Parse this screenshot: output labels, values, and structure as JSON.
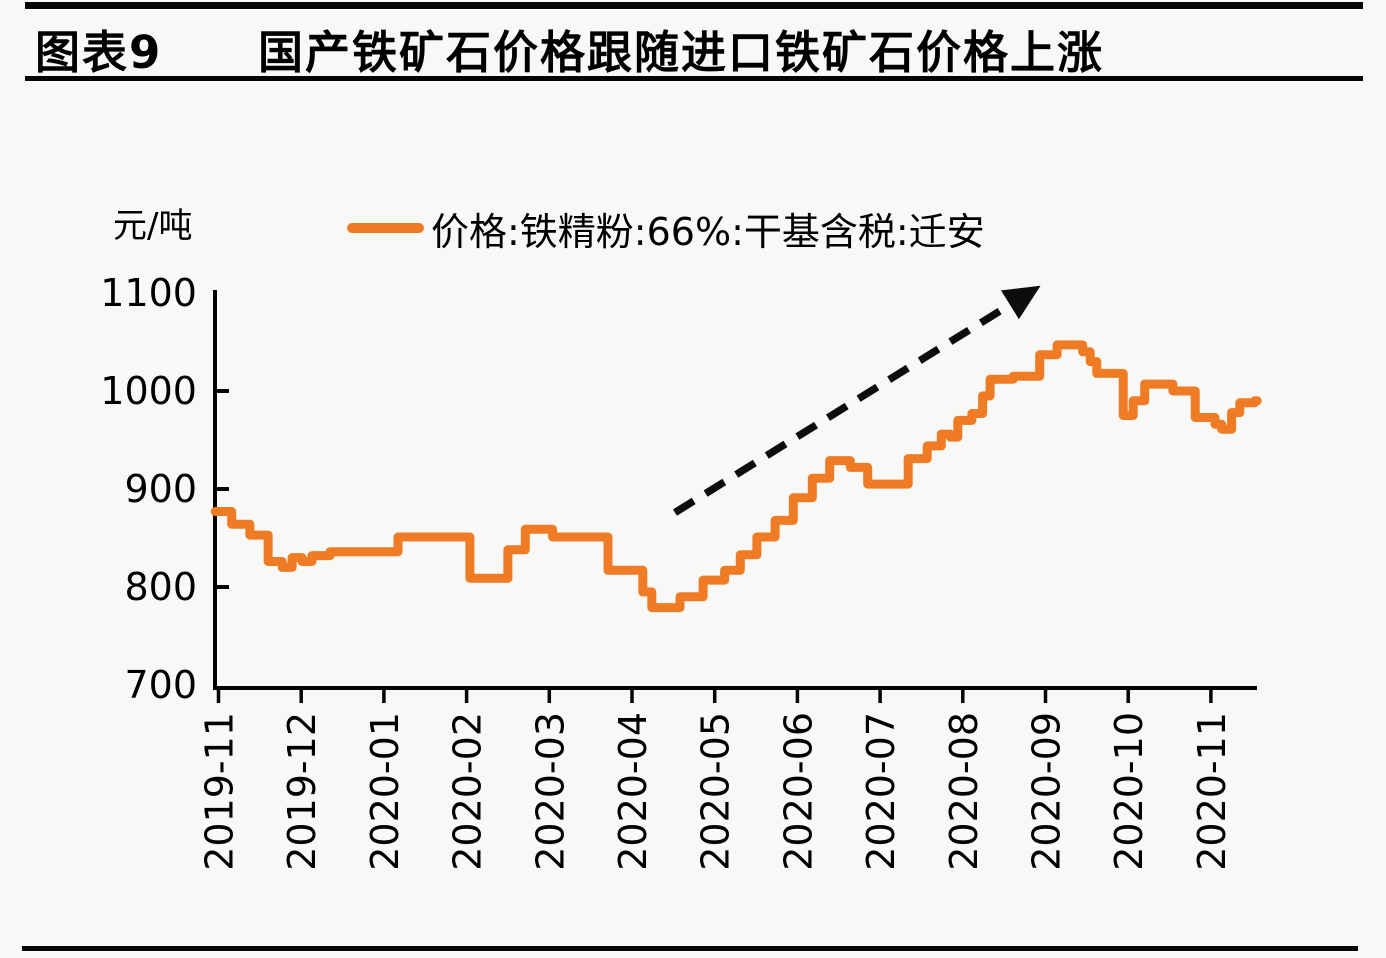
{
  "page": {
    "background": "#f8f8f6",
    "rule_color": "#050505"
  },
  "header": {
    "tag": "图表9",
    "title": "国产铁矿石价格跟随进口铁矿石价格上涨"
  },
  "chart_data": {
    "type": "line",
    "subtype": "step-after",
    "unit_label": "元/吨",
    "grid": "off",
    "legend_position": "top-center",
    "legend": [
      {
        "label": "价格:铁精粉:66%:干基含税:迁安",
        "color": "#EF7C24"
      }
    ],
    "axis_color": "#000000",
    "x_tick_labels": [
      "2019-11",
      "2019-12",
      "2020-01",
      "2020-02",
      "2020-03",
      "2020-04",
      "2020-05",
      "2020-06",
      "2020-07",
      "2020-08",
      "2020-09",
      "2020-10",
      "2020-11"
    ],
    "y_ticks": [
      700,
      800,
      900,
      1000,
      1100
    ],
    "y_inner_ticks": [
      800,
      900,
      1000
    ],
    "ylim": [
      700,
      1100
    ],
    "xlim_months": [
      -0.06,
      12.56
    ],
    "series": [
      {
        "name": "价格:铁精粉:66%:干基含税:迁安",
        "color": "#EF7C24",
        "x_unit": "months since 2019-11",
        "y_unit": "元/吨",
        "points": [
          [
            -0.04,
            877
          ],
          [
            0.16,
            864
          ],
          [
            0.38,
            853
          ],
          [
            0.6,
            826
          ],
          [
            0.77,
            820
          ],
          [
            0.89,
            830
          ],
          [
            1.01,
            826
          ],
          [
            1.13,
            832
          ],
          [
            1.35,
            836
          ],
          [
            2.17,
            851
          ],
          [
            3.04,
            809
          ],
          [
            3.5,
            838
          ],
          [
            3.71,
            859
          ],
          [
            4.04,
            851
          ],
          [
            4.71,
            817
          ],
          [
            5.13,
            795
          ],
          [
            5.24,
            779
          ],
          [
            5.58,
            790
          ],
          [
            5.86,
            807
          ],
          [
            6.12,
            817
          ],
          [
            6.31,
            833
          ],
          [
            6.51,
            851
          ],
          [
            6.73,
            868
          ],
          [
            6.95,
            891
          ],
          [
            7.18,
            911
          ],
          [
            7.39,
            929
          ],
          [
            7.64,
            922
          ],
          [
            7.85,
            905
          ],
          [
            8.34,
            931
          ],
          [
            8.57,
            944
          ],
          [
            8.74,
            956
          ],
          [
            8.85,
            953
          ],
          [
            8.94,
            970
          ],
          [
            9.11,
            977
          ],
          [
            9.24,
            995
          ],
          [
            9.33,
            1012
          ],
          [
            9.61,
            1015
          ],
          [
            9.93,
            1037
          ],
          [
            10.14,
            1047
          ],
          [
            10.45,
            1040
          ],
          [
            10.54,
            1030
          ],
          [
            10.62,
            1018
          ],
          [
            10.84,
            1018
          ],
          [
            10.94,
            975
          ],
          [
            11.06,
            990
          ],
          [
            11.2,
            1007
          ],
          [
            11.54,
            1000
          ],
          [
            11.81,
            973
          ],
          [
            12.05,
            966
          ],
          [
            12.13,
            961
          ],
          [
            12.25,
            978
          ],
          [
            12.35,
            988
          ],
          [
            12.53,
            990
          ],
          [
            12.56,
            990
          ]
        ]
      }
    ],
    "annotations": [
      {
        "name": "upward-trend-arrow",
        "kind": "dashed-arrow",
        "color": "#0d0d0d",
        "from": [
          5.52,
          876
        ],
        "to": [
          9.57,
          1088
        ]
      }
    ]
  }
}
